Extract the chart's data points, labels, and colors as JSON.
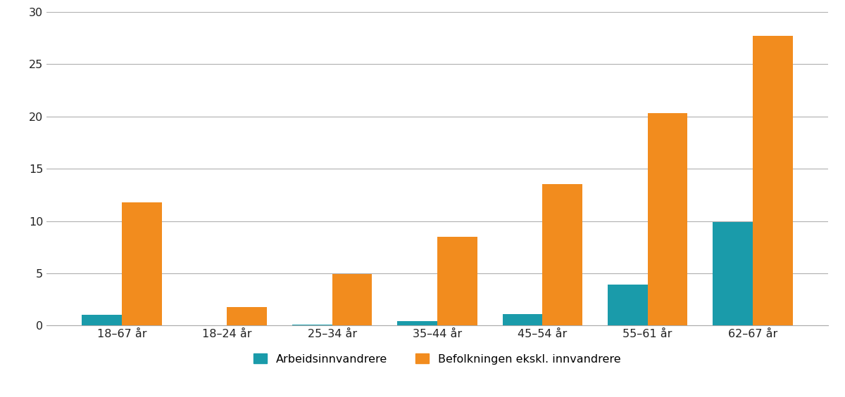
{
  "categories": [
    "18–67 år",
    "18–24 år",
    "25–34 år",
    "35–44 år",
    "45–54 år",
    "55–61 år",
    "62–67 år"
  ],
  "arbeidsinnvandrere": [
    1.0,
    0.05,
    0.12,
    0.4,
    1.1,
    3.9,
    9.9
  ],
  "befolkningen": [
    11.8,
    1.8,
    4.9,
    8.5,
    13.5,
    20.3,
    27.7
  ],
  "color_arbeidsinnvandrere": "#1a9baa",
  "color_befolkningen": "#f28c1e",
  "legend_arbeidsinnvandrere": "Arbeidsinnvandrere",
  "legend_befolkningen": "Befolkningen ekskl. innvandrere",
  "ylim": [
    0,
    30
  ],
  "yticks": [
    0,
    5,
    10,
    15,
    20,
    25,
    30
  ],
  "bar_width": 0.38,
  "background_color": "#ffffff",
  "grid_color": "#b0b0b0",
  "tick_fontsize": 11.5,
  "legend_fontsize": 11.5
}
